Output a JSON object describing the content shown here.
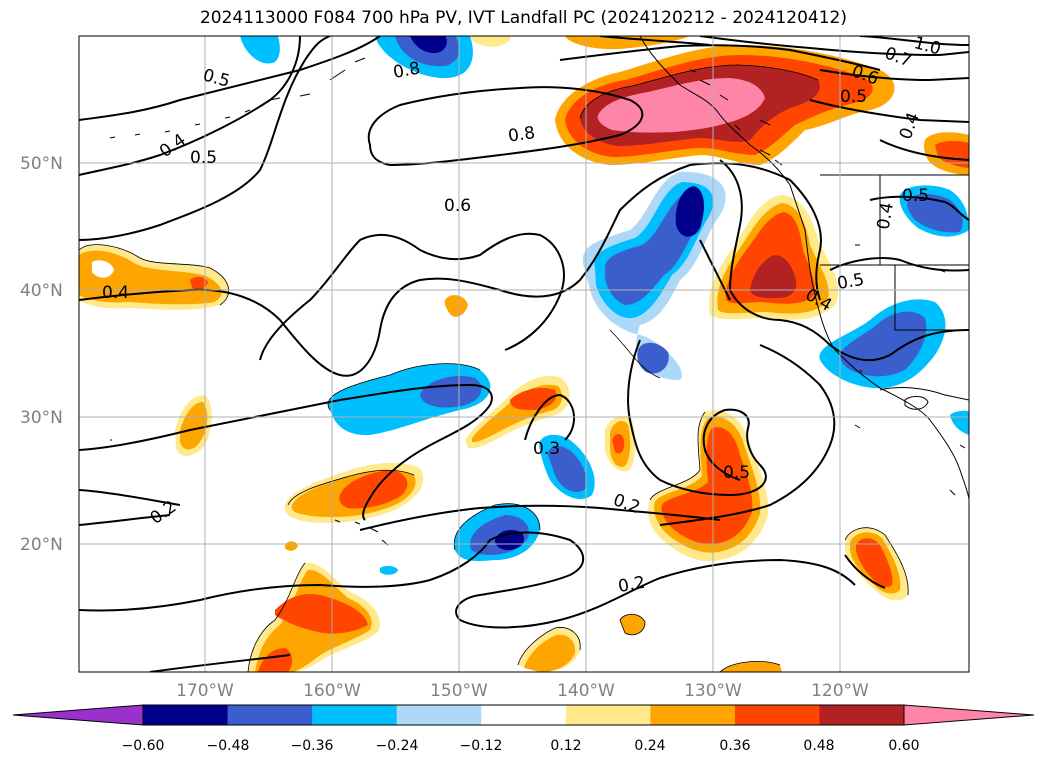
{
  "title": "2024113000 F084 700 hPa PV, IVT Landfall PC (2024120212 - 2024120412)",
  "map": {
    "lat_labels": [
      "50°N",
      "40°N",
      "30°N",
      "20°N"
    ],
    "lon_labels": [
      "170°W",
      "160°W",
      "150°W",
      "140°W",
      "130°W",
      "120°W"
    ]
  },
  "contour_labels": [
    "0.5",
    "0.5",
    "0.4",
    "0.8",
    "0.8",
    "0.6",
    "0.7",
    "1.0",
    "0.5",
    "0.4",
    "0.6",
    "0.4",
    "0.5",
    "0.4",
    "0.5",
    "0.4",
    "0.5",
    "0.3",
    "0.2",
    "0.2",
    "0.2"
  ],
  "colorbar": {
    "ticks": [
      "−0.60",
      "−0.48",
      "−0.36",
      "−0.24",
      "−0.12",
      "0.12",
      "0.24",
      "0.36",
      "0.48",
      "0.60"
    ],
    "colors": [
      "#9932cc",
      "#00008b",
      "#3a5fcd",
      "#00bfff",
      "#add8f8",
      "#ffffff",
      "#ffe98a",
      "#ffa500",
      "#ff4500",
      "#b22222",
      "#ff85a8"
    ]
  }
}
